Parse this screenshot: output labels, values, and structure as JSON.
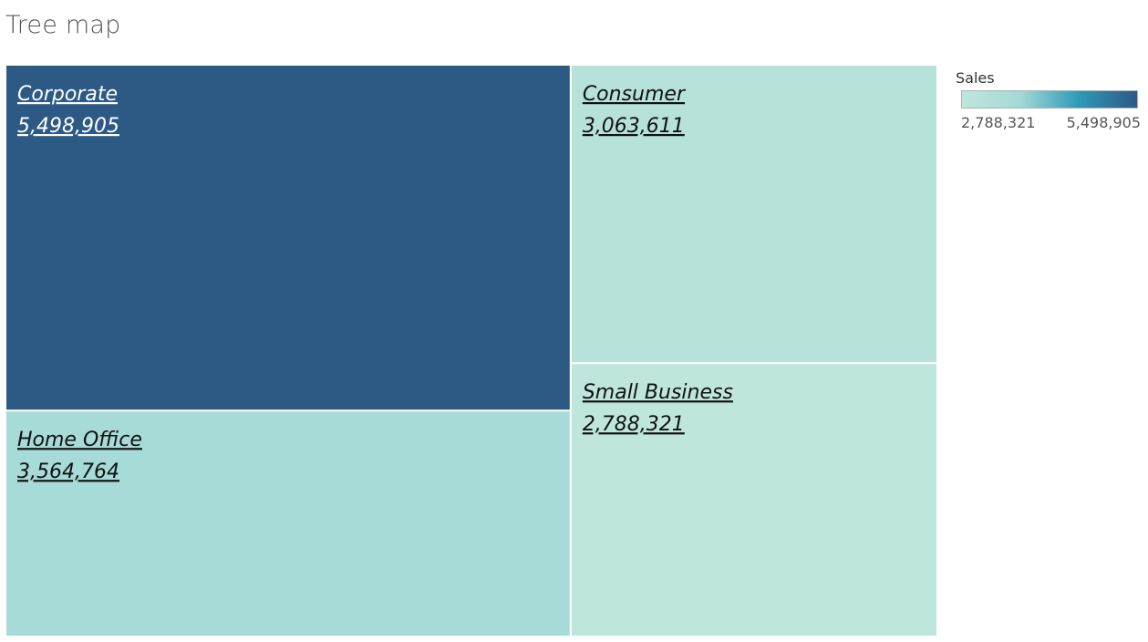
{
  "chart_data": {
    "type": "treemap",
    "title": "Tree map",
    "measure": "Sales",
    "items": [
      {
        "name": "Corporate",
        "value": 5498905,
        "label": "5,498,905"
      },
      {
        "name": "Home Office",
        "value": 3564764,
        "label": "3,564,764"
      },
      {
        "name": "Consumer",
        "value": 3063611,
        "label": "3,063,611"
      },
      {
        "name": "Small Business",
        "value": 2788321,
        "label": "2,788,321"
      }
    ],
    "color_scale": {
      "min": 2788321,
      "max": 5498905,
      "min_label": "2,788,321",
      "max_label": "5,498,905",
      "colors": [
        "#bfe6dc",
        "#a3d9d6",
        "#2e9ab7",
        "#2d5985"
      ]
    }
  }
}
